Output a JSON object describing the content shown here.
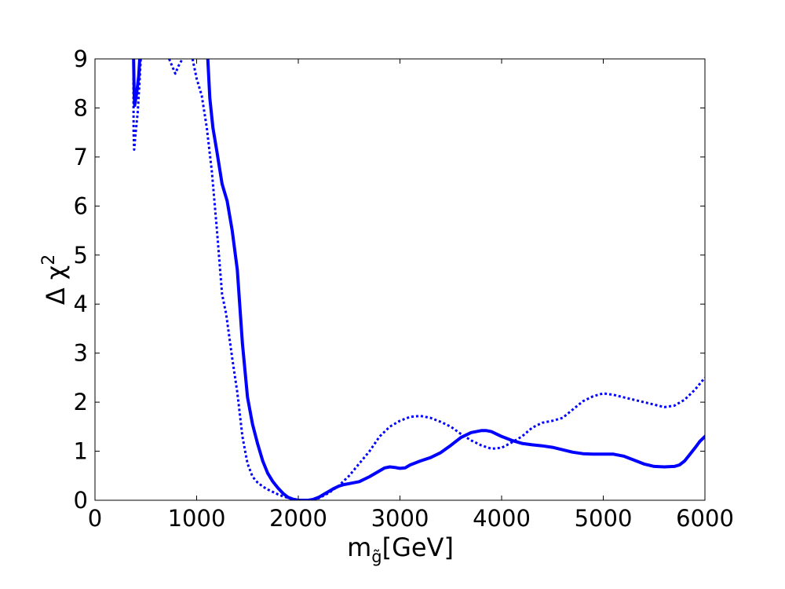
{
  "chart_data": {
    "type": "line",
    "xlabel": {
      "main": "m",
      "sub": "g̃",
      "rest": "[GeV]"
    },
    "ylabel": {
      "main": "Δ χ",
      "sup": "2"
    },
    "xlim": [
      0,
      6000
    ],
    "ylim": [
      0,
      9
    ],
    "xticks": [
      0,
      1000,
      2000,
      3000,
      4000,
      5000,
      6000
    ],
    "yticks": [
      0,
      1,
      2,
      3,
      4,
      5,
      6,
      7,
      8,
      9
    ],
    "xtick_labels": [
      "0",
      "1000",
      "2000",
      "3000",
      "4000",
      "5000",
      "6000"
    ],
    "ytick_labels": [
      "0",
      "1",
      "2",
      "3",
      "4",
      "5",
      "6",
      "7",
      "8",
      "9"
    ],
    "grid": false,
    "series": [
      {
        "style": "solid",
        "color": "#0000ff",
        "segments": [
          [
            [
              380,
              9.0
            ],
            [
              385,
              8.3
            ],
            [
              390,
              8.05
            ],
            [
              410,
              8.3
            ],
            [
              430,
              8.65
            ],
            [
              440,
              9.0
            ]
          ],
          [
            [
              1110,
              9.0
            ],
            [
              1130,
              8.2
            ],
            [
              1160,
              7.6
            ],
            [
              1200,
              7.1
            ],
            [
              1250,
              6.45
            ],
            [
              1300,
              6.1
            ],
            [
              1350,
              5.5
            ],
            [
              1400,
              4.7
            ],
            [
              1450,
              3.2
            ],
            [
              1500,
              2.1
            ],
            [
              1550,
              1.55
            ],
            [
              1600,
              1.15
            ],
            [
              1650,
              0.8
            ],
            [
              1700,
              0.55
            ],
            [
              1750,
              0.38
            ],
            [
              1800,
              0.25
            ],
            [
              1850,
              0.14
            ],
            [
              1900,
              0.06
            ],
            [
              1950,
              0.02
            ],
            [
              2000,
              0.0
            ],
            [
              2050,
              0.0
            ],
            [
              2100,
              0.0
            ],
            [
              2150,
              0.02
            ],
            [
              2200,
              0.06
            ],
            [
              2250,
              0.12
            ],
            [
              2300,
              0.18
            ],
            [
              2350,
              0.24
            ],
            [
              2400,
              0.29
            ],
            [
              2450,
              0.32
            ],
            [
              2500,
              0.34
            ],
            [
              2600,
              0.38
            ],
            [
              2700,
              0.48
            ],
            [
              2800,
              0.6
            ],
            [
              2850,
              0.66
            ],
            [
              2900,
              0.68
            ],
            [
              2950,
              0.67
            ],
            [
              3000,
              0.65
            ],
            [
              3050,
              0.66
            ],
            [
              3100,
              0.72
            ],
            [
              3200,
              0.8
            ],
            [
              3300,
              0.87
            ],
            [
              3400,
              0.97
            ],
            [
              3500,
              1.12
            ],
            [
              3600,
              1.28
            ],
            [
              3700,
              1.38
            ],
            [
              3800,
              1.42
            ],
            [
              3850,
              1.42
            ],
            [
              3900,
              1.4
            ],
            [
              4000,
              1.3
            ],
            [
              4100,
              1.22
            ],
            [
              4200,
              1.16
            ],
            [
              4300,
              1.13
            ],
            [
              4400,
              1.11
            ],
            [
              4500,
              1.08
            ],
            [
              4600,
              1.03
            ],
            [
              4700,
              0.98
            ],
            [
              4800,
              0.95
            ],
            [
              4900,
              0.94
            ],
            [
              5000,
              0.94
            ],
            [
              5100,
              0.94
            ],
            [
              5200,
              0.9
            ],
            [
              5300,
              0.82
            ],
            [
              5400,
              0.74
            ],
            [
              5500,
              0.69
            ],
            [
              5600,
              0.68
            ],
            [
              5700,
              0.69
            ],
            [
              5750,
              0.72
            ],
            [
              5800,
              0.8
            ],
            [
              5850,
              0.93
            ],
            [
              5900,
              1.06
            ],
            [
              5950,
              1.2
            ],
            [
              6000,
              1.3
            ]
          ]
        ]
      },
      {
        "style": "dotted",
        "color": "#0000ff",
        "segments": [
          [
            [
              378,
              9.0
            ],
            [
              380,
              7.5
            ],
            [
              385,
              7.15
            ],
            [
              395,
              7.4
            ],
            [
              420,
              7.9
            ],
            [
              440,
              8.6
            ],
            [
              450,
              9.0
            ]
          ],
          [
            [
              730,
              9.0
            ],
            [
              760,
              8.85
            ],
            [
              790,
              8.7
            ],
            [
              820,
              8.85
            ],
            [
              860,
              9.0
            ]
          ],
          [
            [
              960,
              9.0
            ],
            [
              1000,
              8.6
            ],
            [
              1050,
              8.25
            ],
            [
              1100,
              7.6
            ],
            [
              1150,
              6.7
            ],
            [
              1200,
              5.5
            ],
            [
              1250,
              4.2
            ],
            [
              1290,
              3.8
            ],
            [
              1350,
              2.9
            ],
            [
              1400,
              2.2
            ],
            [
              1450,
              1.3
            ],
            [
              1500,
              0.75
            ],
            [
              1550,
              0.48
            ],
            [
              1600,
              0.36
            ],
            [
              1650,
              0.28
            ],
            [
              1700,
              0.22
            ],
            [
              1750,
              0.17
            ],
            [
              1800,
              0.12
            ],
            [
              1850,
              0.08
            ],
            [
              1900,
              0.05
            ],
            [
              1950,
              0.03
            ],
            [
              2000,
              0.01
            ],
            [
              2050,
              0.0
            ],
            [
              2100,
              0.0
            ],
            [
              2200,
              0.04
            ],
            [
              2300,
              0.15
            ],
            [
              2400,
              0.3
            ],
            [
              2500,
              0.5
            ],
            [
              2600,
              0.75
            ],
            [
              2700,
              1.0
            ],
            [
              2800,
              1.3
            ],
            [
              2900,
              1.5
            ],
            [
              3000,
              1.62
            ],
            [
              3100,
              1.7
            ],
            [
              3200,
              1.72
            ],
            [
              3300,
              1.68
            ],
            [
              3400,
              1.6
            ],
            [
              3500,
              1.5
            ],
            [
              3600,
              1.35
            ],
            [
              3700,
              1.22
            ],
            [
              3800,
              1.12
            ],
            [
              3900,
              1.05
            ],
            [
              4000,
              1.07
            ],
            [
              4100,
              1.18
            ],
            [
              4200,
              1.3
            ],
            [
              4300,
              1.48
            ],
            [
              4400,
              1.58
            ],
            [
              4500,
              1.62
            ],
            [
              4600,
              1.68
            ],
            [
              4700,
              1.85
            ],
            [
              4800,
              2.02
            ],
            [
              4900,
              2.12
            ],
            [
              5000,
              2.18
            ],
            [
              5100,
              2.15
            ],
            [
              5200,
              2.1
            ],
            [
              5300,
              2.05
            ],
            [
              5400,
              2.0
            ],
            [
              5500,
              1.95
            ],
            [
              5600,
              1.9
            ],
            [
              5700,
              1.93
            ],
            [
              5800,
              2.05
            ],
            [
              5900,
              2.25
            ],
            [
              6000,
              2.5
            ]
          ]
        ]
      }
    ]
  }
}
